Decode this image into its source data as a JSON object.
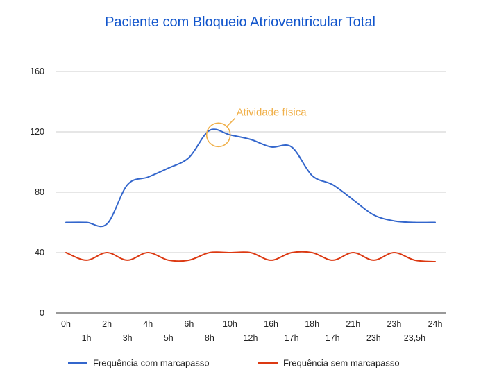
{
  "chart_data": {
    "type": "line",
    "title": "Paciente com Bloqueio Atrioventricular Total",
    "x": [
      "0h",
      "1h",
      "2h",
      "3h",
      "4h",
      "5h",
      "6h",
      "8h",
      "10h",
      "12h",
      "16h",
      "17h",
      "18h",
      "17h",
      "21h",
      "23h",
      "23h",
      "23,5h",
      "24h"
    ],
    "ylim": [
      0,
      160
    ],
    "yticks": [
      0,
      40,
      80,
      120,
      160
    ],
    "grid": true,
    "legend_position": "bottom",
    "series": [
      {
        "name": "Frequência com marcapasso",
        "color": "#3366cc",
        "values": [
          60,
          60,
          59,
          85,
          90,
          96,
          103,
          121,
          118,
          115,
          110,
          110,
          91,
          85,
          75,
          65,
          61,
          60,
          60
        ]
      },
      {
        "name": "Frequência sem marcapasso",
        "color": "#dc3912",
        "values": [
          40,
          35,
          40,
          35,
          40,
          35,
          35,
          40,
          40,
          40,
          35,
          40,
          40,
          35,
          40,
          35,
          40,
          35,
          34
        ]
      }
    ],
    "annotations": [
      {
        "text": "Atividade física",
        "color": "#f0b04a",
        "x_index": 7.5,
        "y": 118
      }
    ]
  }
}
